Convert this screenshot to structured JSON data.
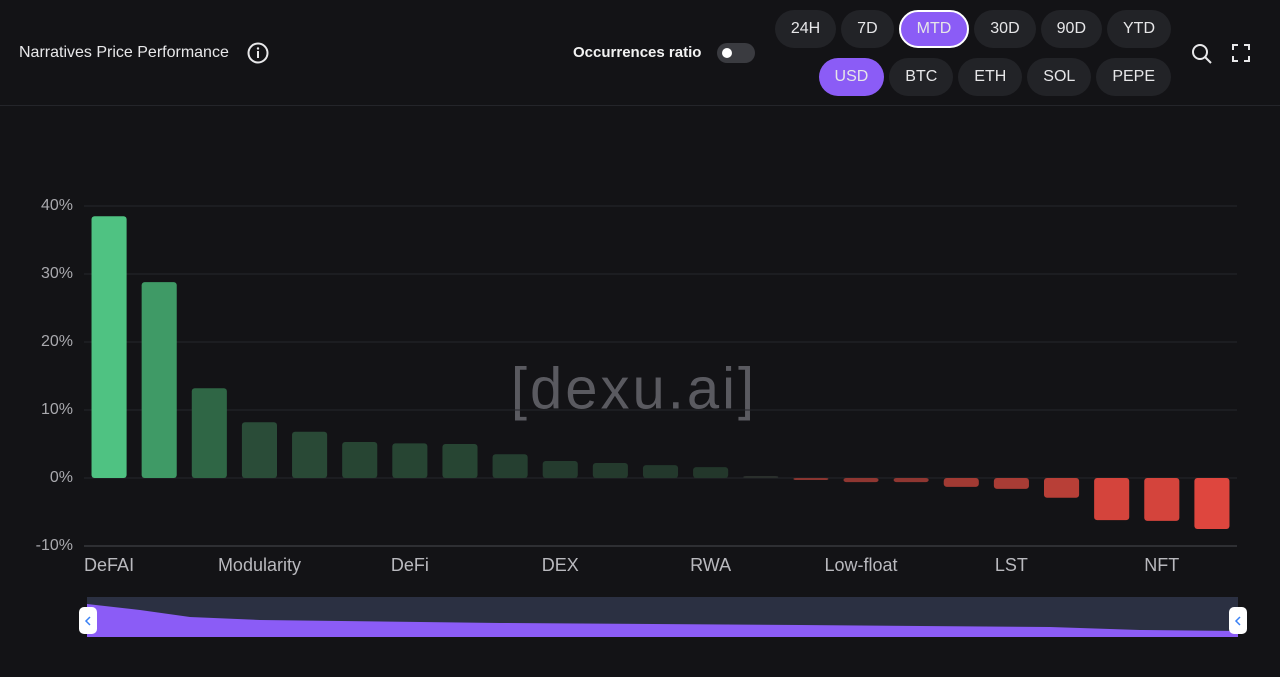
{
  "header": {
    "title": "Narratives Price Performance",
    "toggle_label": "Occurrences ratio",
    "periods": [
      {
        "label": "24H"
      },
      {
        "label": "7D"
      },
      {
        "label": "MTD",
        "selected": true
      },
      {
        "label": "30D"
      },
      {
        "label": "90D"
      },
      {
        "label": "YTD"
      }
    ],
    "currencies": [
      {
        "label": "USD",
        "selected": true
      },
      {
        "label": "BTC"
      },
      {
        "label": "ETH"
      },
      {
        "label": "SOL"
      },
      {
        "label": "PEPE"
      }
    ]
  },
  "chart_data": {
    "type": "bar",
    "watermark": "[dexu.ai]",
    "categories": [
      "DeFAI",
      null,
      null,
      "Modularity",
      null,
      null,
      "DeFi",
      null,
      null,
      "DEX",
      null,
      null,
      "RWA",
      null,
      null,
      "Low-float",
      null,
      null,
      "LST",
      null,
      null,
      "NFT",
      null
    ],
    "values": [
      38.5,
      28.8,
      13.2,
      8.2,
      6.8,
      5.3,
      5.1,
      5.0,
      3.5,
      2.5,
      2.2,
      1.9,
      1.6,
      0.3,
      -0.3,
      -0.6,
      -0.6,
      -1.3,
      -1.6,
      -2.9,
      -6.2,
      -6.3,
      -7.5
    ],
    "colors": [
      "#4fc282",
      "#3f9a66",
      "#2f6645",
      "#2a4c38",
      "#294936",
      "#274533",
      "#274533",
      "#274533",
      "#253f30",
      "#243b2e",
      "#243a2d",
      "#23382c",
      "#23372b",
      "#2a2f2c",
      "#8a3530",
      "#8f3631",
      "#8f3631",
      "#a13a33",
      "#a83c35",
      "#b83f37",
      "#d4443c",
      "#d4443c",
      "#de463e"
    ],
    "ylim": [
      -10,
      40
    ],
    "yticks": [
      {
        "value": -10,
        "label": "-10%"
      },
      {
        "value": 0,
        "label": "0%"
      },
      {
        "value": 10,
        "label": "10%"
      },
      {
        "value": 20,
        "label": "20%"
      },
      {
        "value": 30,
        "label": "30%"
      },
      {
        "value": 40,
        "label": "40%"
      }
    ],
    "grid": true
  }
}
